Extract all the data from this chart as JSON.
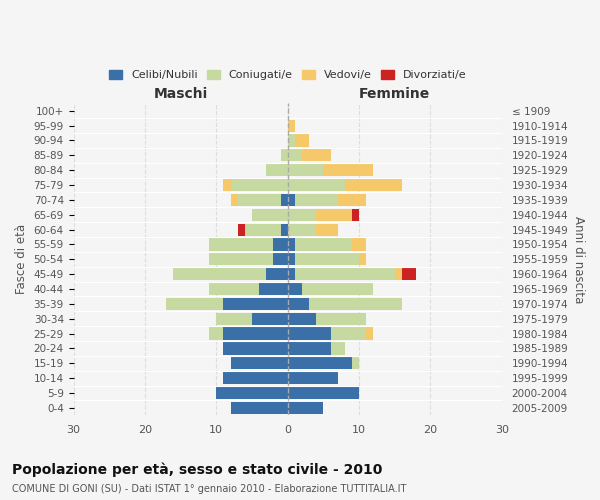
{
  "age_groups": [
    "0-4",
    "5-9",
    "10-14",
    "15-19",
    "20-24",
    "25-29",
    "30-34",
    "35-39",
    "40-44",
    "45-49",
    "50-54",
    "55-59",
    "60-64",
    "65-69",
    "70-74",
    "75-79",
    "80-84",
    "85-89",
    "90-94",
    "95-99",
    "100+"
  ],
  "birth_years": [
    "2005-2009",
    "2000-2004",
    "1995-1999",
    "1990-1994",
    "1985-1989",
    "1980-1984",
    "1975-1979",
    "1970-1974",
    "1965-1969",
    "1960-1964",
    "1955-1959",
    "1950-1954",
    "1945-1949",
    "1940-1944",
    "1935-1939",
    "1930-1934",
    "1925-1929",
    "1920-1924",
    "1915-1919",
    "1910-1914",
    "≤ 1909"
  ],
  "males": {
    "celibi": [
      8,
      10,
      9,
      8,
      9,
      9,
      5,
      9,
      4,
      3,
      2,
      2,
      1,
      0,
      1,
      0,
      0,
      0,
      0,
      0,
      0
    ],
    "coniugati": [
      0,
      0,
      0,
      0,
      0,
      2,
      5,
      8,
      7,
      13,
      9,
      9,
      5,
      5,
      6,
      8,
      3,
      1,
      0,
      0,
      0
    ],
    "vedovi": [
      0,
      0,
      0,
      0,
      0,
      0,
      0,
      0,
      0,
      0,
      0,
      0,
      0,
      0,
      1,
      1,
      0,
      0,
      0,
      0,
      0
    ],
    "divorziati": [
      0,
      0,
      0,
      0,
      0,
      0,
      0,
      0,
      0,
      0,
      0,
      0,
      1,
      0,
      0,
      0,
      0,
      0,
      0,
      0,
      0
    ]
  },
  "females": {
    "nubili": [
      5,
      10,
      7,
      9,
      6,
      6,
      4,
      3,
      2,
      1,
      1,
      1,
      0,
      0,
      1,
      0,
      0,
      0,
      0,
      0,
      0
    ],
    "coniugate": [
      0,
      0,
      0,
      1,
      2,
      5,
      7,
      13,
      10,
      14,
      9,
      8,
      4,
      4,
      6,
      8,
      5,
      2,
      1,
      0,
      0
    ],
    "vedove": [
      0,
      0,
      0,
      0,
      0,
      1,
      0,
      0,
      0,
      1,
      1,
      2,
      3,
      5,
      4,
      8,
      7,
      4,
      2,
      1,
      0
    ],
    "divorziate": [
      0,
      0,
      0,
      0,
      0,
      0,
      0,
      0,
      0,
      2,
      0,
      0,
      0,
      1,
      0,
      0,
      0,
      0,
      0,
      0,
      0
    ]
  },
  "colors": {
    "celibi": "#3a6fa8",
    "coniugati": "#c5d9a0",
    "vedovi": "#f5c96a",
    "divorziati": "#cc2222"
  },
  "xlim": 30,
  "title": "Popolazione per età, sesso e stato civile - 2010",
  "subtitle": "COMUNE DI GONI (SU) - Dati ISTAT 1° gennaio 2010 - Elaborazione TUTTITALIA.IT",
  "ylabel_left": "Fasce di età",
  "ylabel_right": "Anni di nascita",
  "xlabel_left": "Maschi",
  "xlabel_right": "Femmine",
  "background_color": "#f5f5f5"
}
